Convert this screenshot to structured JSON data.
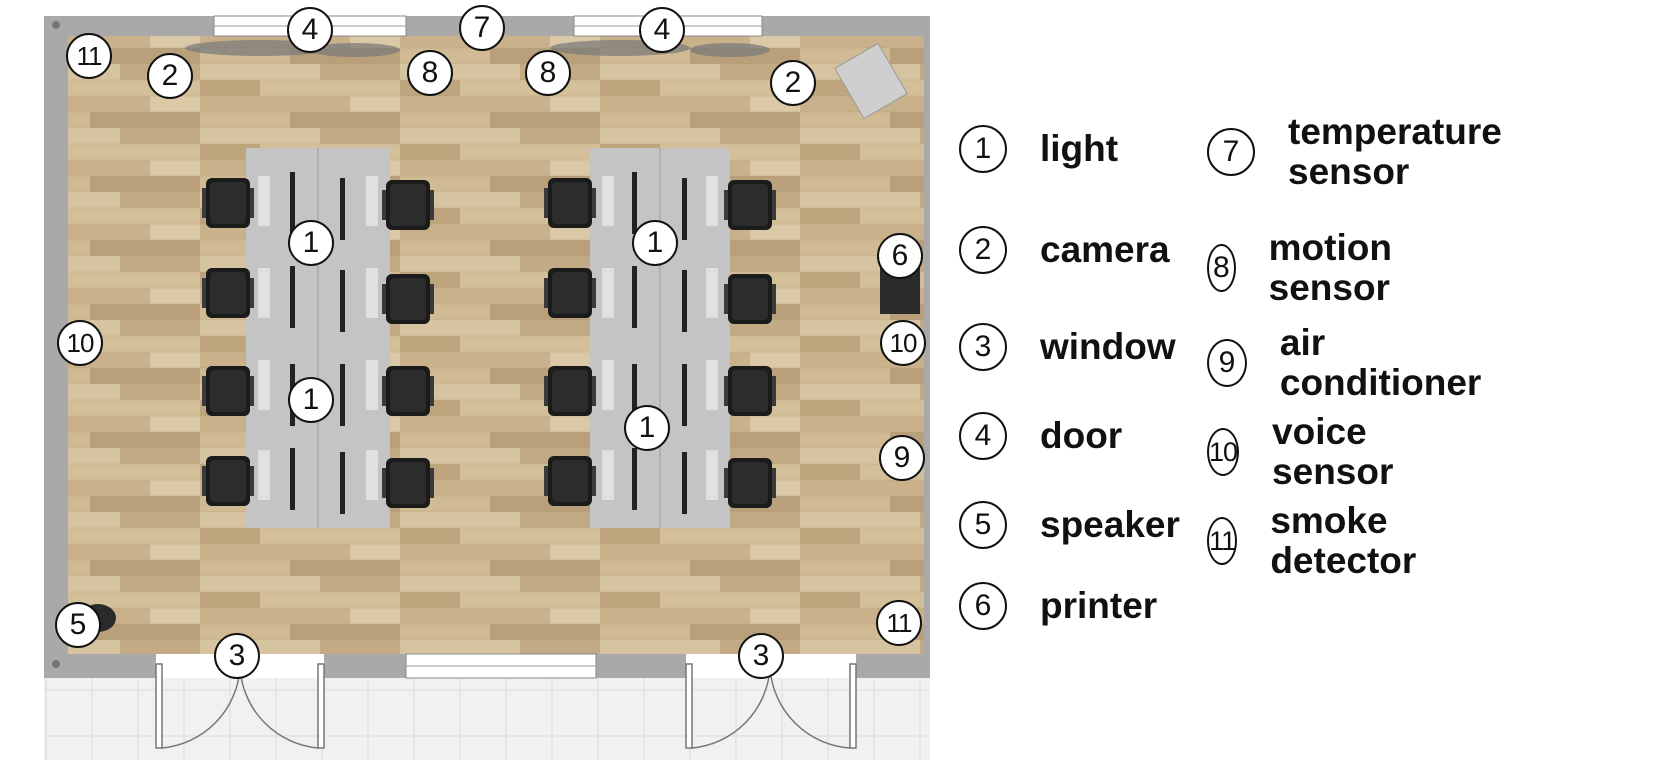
{
  "floor_markers": [
    {
      "id": "m-light-1",
      "num": "1"
    },
    {
      "id": "m-light-2",
      "num": "1"
    },
    {
      "id": "m-light-3",
      "num": "1"
    },
    {
      "id": "m-light-4",
      "num": "1"
    },
    {
      "id": "m-camera-1",
      "num": "2"
    },
    {
      "id": "m-camera-2",
      "num": "2"
    },
    {
      "id": "m-window-1",
      "num": "3"
    },
    {
      "id": "m-window-2",
      "num": "3"
    },
    {
      "id": "m-door-1",
      "num": "4"
    },
    {
      "id": "m-door-2",
      "num": "4"
    },
    {
      "id": "m-speaker",
      "num": "5"
    },
    {
      "id": "m-printer",
      "num": "6"
    },
    {
      "id": "m-temp",
      "num": "7"
    },
    {
      "id": "m-motion-1",
      "num": "8"
    },
    {
      "id": "m-motion-2",
      "num": "8"
    },
    {
      "id": "m-ac",
      "num": "9"
    },
    {
      "id": "m-voice-1",
      "num": "10"
    },
    {
      "id": "m-voice-2",
      "num": "10"
    },
    {
      "id": "m-smoke-1",
      "num": "11"
    },
    {
      "id": "m-smoke-2",
      "num": "11"
    }
  ],
  "legend": [
    {
      "num": "1",
      "label": "light"
    },
    {
      "num": "2",
      "label": "camera"
    },
    {
      "num": "3",
      "label": "window"
    },
    {
      "num": "4",
      "label": "door"
    },
    {
      "num": "5",
      "label": "speaker"
    },
    {
      "num": "6",
      "label": "printer"
    },
    {
      "num": "7",
      "label": "temperature sensor"
    },
    {
      "num": "8",
      "label": "motion sensor"
    },
    {
      "num": "9",
      "label": "air conditioner"
    },
    {
      "num": "10",
      "label": "voice sensor"
    },
    {
      "num": "11",
      "label": "smoke detector"
    }
  ],
  "colors": {
    "wall": "#a9a9a9",
    "floor": "#cdb892",
    "floor_dark": "#b9a07a",
    "table": "#c4c4c4",
    "chair": "#1b1b1b",
    "outside": "#eeeeee",
    "marker_border": "#111111"
  }
}
